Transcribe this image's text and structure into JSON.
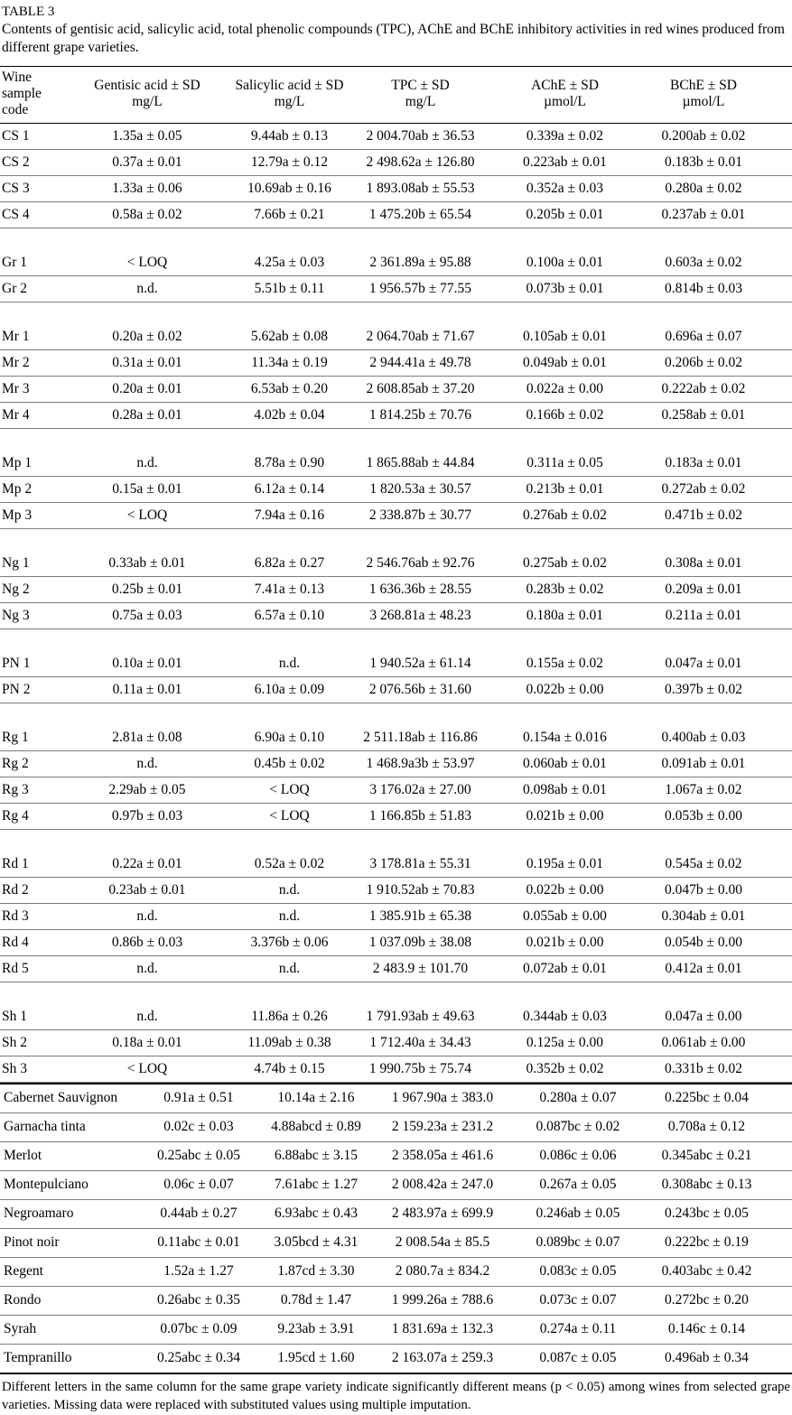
{
  "document": {
    "table_label": "TABLE 3",
    "caption": "Contents of gentisic acid, salicylic acid, total phenolic compounds (TPC), AChE and BChE inhibitory activities in red wines produced from different grape varieties.",
    "footnote": "Different letters in the same column for the same grape variety indicate significantly different means (p < 0.05) among wines from selected grape varieties. Missing data were replaced with substituted values using multiple imputation."
  },
  "chart_data": {
    "type": "table",
    "columns": [
      [
        "Wine",
        "sample",
        "code"
      ],
      [
        "Gentisic acid ± SD",
        "mg/L"
      ],
      [
        "Salicylic acid ± SD",
        "mg/L"
      ],
      [
        "TPC ± SD",
        "mg/L"
      ],
      [
        "AChE ± SD",
        "µmol/L"
      ],
      [
        "BChE ± SD",
        "µmol/L"
      ]
    ],
    "sample_groups": [
      [
        [
          "CS 1",
          "1.35a ± 0.05",
          "9.44ab ± 0.13",
          "2 004.70ab ± 36.53",
          "0.339a ± 0.02",
          "0.200ab ± 0.02"
        ],
        [
          "CS 2",
          "0.37a ± 0.01",
          "12.79a ± 0.12",
          "2 498.62a ± 126.80",
          "0.223ab ± 0.01",
          "0.183b ± 0.01"
        ],
        [
          "CS 3",
          "1.33a ± 0.06",
          "10.69ab ± 0.16",
          "1 893.08ab ± 55.53",
          "0.352a ± 0.03",
          "0.280a ± 0.02"
        ],
        [
          "CS 4",
          "0.58a ± 0.02",
          "7.66b ± 0.21",
          "1 475.20b ± 65.54",
          "0.205b ± 0.01",
          "0.237ab ± 0.01"
        ]
      ],
      [
        [
          "Gr 1",
          "< LOQ",
          "4.25a ± 0.03",
          "2 361.89a ± 95.88",
          "0.100a ± 0.01",
          "0.603a ± 0.02"
        ],
        [
          "Gr 2",
          "n.d.",
          "5.51b ± 0.11",
          "1 956.57b ± 77.55",
          "0.073b ± 0.01",
          "0.814b ± 0.03"
        ]
      ],
      [
        [
          "Mr 1",
          "0.20a ± 0.02",
          "5.62ab ± 0.08",
          "2 064.70ab ± 71.67",
          "0.105ab ± 0.01",
          "0.696a ± 0.07"
        ],
        [
          "Mr 2",
          "0.31a ± 0.01",
          "11.34a ± 0.19",
          "2 944.41a ± 49.78",
          "0.049ab ± 0.01",
          "0.206b ± 0.02"
        ],
        [
          "Mr 3",
          "0.20a ± 0.01",
          "6.53ab ± 0.20",
          "2 608.85ab ± 37.20",
          "0.022a ± 0.00",
          "0.222ab ± 0.02"
        ],
        [
          "Mr 4",
          "0.28a ± 0.01",
          "4.02b ± 0.04",
          "1 814.25b ± 70.76",
          "0.166b ± 0.02",
          "0.258ab ± 0.01"
        ]
      ],
      [
        [
          "Mp 1",
          "n.d.",
          "8.78a ± 0.90",
          "1 865.88ab ± 44.84",
          "0.311a ± 0.05",
          "0.183a ± 0.01"
        ],
        [
          "Mp 2",
          "0.15a ± 0.01",
          "6.12a ± 0.14",
          "1 820.53a ± 30.57",
          "0.213b ± 0.01",
          "0.272ab ± 0.02"
        ],
        [
          "Mp 3",
          "< LOQ",
          "7.94a ± 0.16",
          "2 338.87b ± 30.77",
          "0.276ab ± 0.02",
          "0.471b ± 0.02"
        ]
      ],
      [
        [
          "Ng 1",
          "0.33ab ± 0.01",
          "6.82a ± 0.27",
          "2 546.76ab ± 92.76",
          "0.275ab ± 0.02",
          "0.308a ± 0.01"
        ],
        [
          "Ng 2",
          "0.25b ± 0.01",
          "7.41a ± 0.13",
          "1 636.36b ± 28.55",
          "0.283b ± 0.02",
          "0.209a ± 0.01"
        ],
        [
          "Ng 3",
          "0.75a ± 0.03",
          "6.57a ± 0.10",
          "3 268.81a ± 48.23",
          "0.180a ± 0.01",
          "0.211a ± 0.01"
        ]
      ],
      [
        [
          "PN 1",
          "0.10a ± 0.01",
          "n.d.",
          "1 940.52a ± 61.14",
          "0.155a ± 0.02",
          "0.047a ± 0.01"
        ],
        [
          "PN 2",
          "0.11a ± 0.01",
          "6.10a ± 0.09",
          "2 076.56b ± 31.60",
          "0.022b ± 0.00",
          "0.397b ± 0.02"
        ]
      ],
      [
        [
          "Rg 1",
          "2.81a ± 0.08",
          "6.90a ± 0.10",
          "2 511.18ab ± 116.86",
          "0.154a ± 0.016",
          "0.400ab ± 0.03"
        ],
        [
          "Rg 2",
          "n.d.",
          "0.45b ± 0.02",
          "1 468.9a3b ± 53.97",
          "0.060ab ± 0.01",
          "0.091ab ± 0.01"
        ],
        [
          "Rg 3",
          "2.29ab ± 0.05",
          "< LOQ",
          "3 176.02a ± 27.00",
          "0.098ab ± 0.01",
          "1.067a ± 0.02"
        ],
        [
          "Rg 4",
          "0.97b ± 0.03",
          "< LOQ",
          "1 166.85b ± 51.83",
          "0.021b ± 0.00",
          "0.053b ± 0.00"
        ]
      ],
      [
        [
          "Rd 1",
          "0.22a ± 0.01",
          "0.52a ± 0.02",
          "3 178.81a ± 55.31",
          "0.195a ± 0.01",
          "0.545a ± 0.02"
        ],
        [
          "Rd 2",
          "0.23ab ± 0.01",
          "n.d.",
          "1 910.52ab ± 70.83",
          "0.022b ± 0.00",
          "0.047b ± 0.00"
        ],
        [
          "Rd 3",
          "n.d.",
          "n.d.",
          "1 385.91b ± 65.38",
          "0.055ab ± 0.00",
          "0.304ab ± 0.01"
        ],
        [
          "Rd 4",
          "0.86b ± 0.03",
          "3.376b ± 0.06",
          "1 037.09b ± 38.08",
          "0.021b ± 0.00",
          "0.054b ± 0.00"
        ],
        [
          "Rd 5",
          "n.d.",
          "n.d.",
          "2 483.9 ± 101.70",
          "0.072ab ± 0.01",
          "0.412a ± 0.01"
        ]
      ],
      [
        [
          "Sh 1",
          "n.d.",
          "11.86a ± 0.26",
          "1 791.93ab ± 49.63",
          "0.344ab ± 0.03",
          "0.047a ± 0.00"
        ],
        [
          "Sh 2",
          "0.18a ± 0.01",
          "11.09ab ± 0.38",
          "1 712.40a ± 34.43",
          "0.125a ± 0.00",
          "0.061ab ± 0.00"
        ],
        [
          "Sh 3",
          "< LOQ",
          "4.74b ± 0.15",
          "1 990.75b ± 75.74",
          "0.352b ± 0.02",
          "0.331b ± 0.02"
        ]
      ]
    ],
    "variety_rows": [
      [
        "Cabernet Sauvignon",
        "0.91a ± 0.51",
        "10.14a ± 2.16",
        "1 967.90a ± 383.0",
        "0.280a ± 0.07",
        "0.225bc ± 0.04"
      ],
      [
        "Garnacha tinta",
        "0.02c ± 0.03",
        "4.88abcd ± 0.89",
        "2 159.23a ± 231.2",
        "0.087bc ± 0.02",
        "0.708a ± 0.12"
      ],
      [
        "Merlot",
        "0.25abc ± 0.05",
        "6.88abc ± 3.15",
        "2 358.05a ± 461.6",
        "0.086c ± 0.06",
        "0.345abc ± 0.21"
      ],
      [
        "Montepulciano",
        "0.06c ± 0.07",
        "7.61abc ± 1.27",
        "2 008.42a ± 247.0",
        "0.267a ± 0.05",
        "0.308abc ± 0.13"
      ],
      [
        "Negroamaro",
        "0.44ab ± 0.27",
        "6.93abc ± 0.43",
        "2 483.97a ± 699.9",
        "0.246ab ± 0.05",
        "0.243bc ± 0.05"
      ],
      [
        "Pinot noir",
        "0.11abc ± 0.01",
        "3.05bcd ± 4.31",
        "2 008.54a ± 85.5",
        "0.089bc ± 0.07",
        "0.222bc ± 0.19"
      ],
      [
        "Regent",
        "1.52a ± 1.27",
        "1.87cd ± 3.30",
        "2 080.7a ± 834.2",
        "0.083c ± 0.05",
        "0.403abc ± 0.42"
      ],
      [
        "Rondo",
        "0.26abc ± 0.35",
        "0.78d ± 1.47",
        "1 999.26a ± 788.6",
        "0.073c ± 0.07",
        "0.272bc ± 0.20"
      ],
      [
        "Syrah",
        "0.07bc ± 0.09",
        "9.23ab ± 3.91",
        "1 831.69a ± 132.3",
        "0.274a ± 0.11",
        "0.146c ± 0.14"
      ],
      [
        "Tempranillo",
        "0.25abc ± 0.34",
        "1.95cd ± 1.60",
        "2 163.07a ± 259.3",
        "0.087c ± 0.05",
        "0.496ab ± 0.34"
      ]
    ]
  }
}
